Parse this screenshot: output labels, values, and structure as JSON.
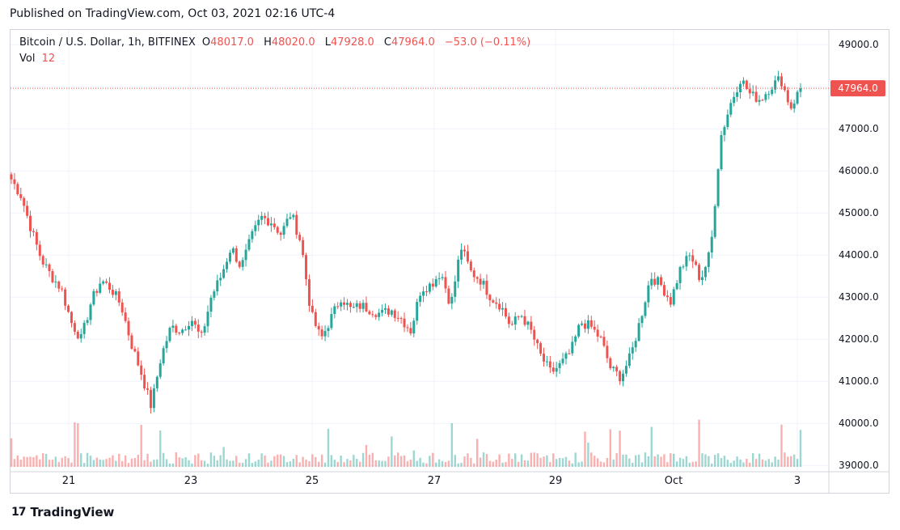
{
  "header": {
    "published": "Published on TradingView.com, Oct 03, 2021 02:16 UTC-4"
  },
  "legend": {
    "symbol": "Bitcoin / U.S. Dollar, 1h, BITFINEX",
    "o_label": "O",
    "o_value": "48017.0",
    "h_label": "H",
    "h_value": "48020.0",
    "l_label": "L",
    "l_value": "47928.0",
    "c_label": "C",
    "c_value": "47964.0",
    "change": "−53.0 (−0.11%)",
    "vol_label": "Vol",
    "vol_value": "12"
  },
  "price_label": "47964.0",
  "footer": {
    "brand": "TradingView"
  },
  "colors": {
    "up": "#26a69a",
    "down": "#ef5350",
    "grid": "#f0f3fa",
    "border": "#d1d4dc",
    "text": "#131722"
  },
  "chart_data": {
    "type": "candlestick",
    "y_ticks": [
      "39000.0",
      "40000.0",
      "41000.0",
      "42000.0",
      "43000.0",
      "44000.0",
      "45000.0",
      "46000.0",
      "47000.0",
      "48000.0",
      "49000.0"
    ],
    "ylim": [
      38850,
      49350
    ],
    "x_ticks": [
      "21",
      "23",
      "25",
      "27",
      "29",
      "Oct",
      "3"
    ],
    "last_price": 47964.0,
    "series": [
      {
        "name": "close_path",
        "values": [
          45800,
          45400,
          44600,
          43900,
          43500,
          43200,
          42400,
          42000,
          42900,
          43400,
          43200,
          42800,
          41900,
          41200,
          40400,
          41600,
          42300,
          42200,
          42500,
          42000,
          43000,
          43500,
          44200,
          43700,
          44400,
          44900,
          44800,
          44500,
          45000,
          44300,
          42600,
          42000,
          42500,
          43000,
          42700,
          42800,
          42700,
          42600,
          42700,
          42500,
          42200,
          43200,
          43300,
          43600,
          42800,
          44200,
          43600,
          43400,
          43000,
          42800,
          42300,
          42600,
          42200,
          41600,
          41200,
          41400,
          41700,
          42400,
          42300,
          42000,
          41300,
          41100,
          41600,
          42500,
          43500,
          43300,
          42900,
          43700,
          44000,
          43400,
          44100,
          46800,
          47600,
          48200,
          47800,
          47700,
          48000,
          48200,
          47500,
          47964
        ]
      }
    ]
  }
}
